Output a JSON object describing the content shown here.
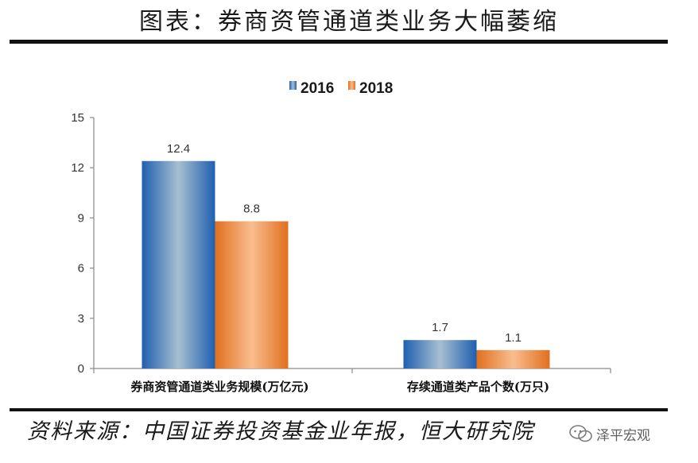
{
  "header": {
    "title": "图表：券商资管通道类业务大幅萎缩"
  },
  "footer": {
    "source": "资料来源：中国证券投资基金业年报，恒大研究院"
  },
  "watermark": {
    "text": "泽平宏观",
    "icon": "wechat-icon"
  },
  "colors": {
    "s2016_dark": "#1f5fb0",
    "s2016_light": "#9fb8cc",
    "s2018_dark": "#e0701f",
    "s2018_light": "#f7b98a",
    "axis": "#888888"
  },
  "chart_data": {
    "type": "bar",
    "categories": [
      "券商资管通道类业务规模(万亿元)",
      "存续通道类产品个数(万只)"
    ],
    "series": [
      {
        "name": "2016",
        "values": [
          12.4,
          1.7
        ]
      },
      {
        "name": "2018",
        "values": [
          8.8,
          1.1
        ]
      }
    ],
    "data_labels": [
      [
        "12.4",
        "1.7"
      ],
      [
        "8.8",
        "1.1"
      ]
    ],
    "yticks": [
      "0",
      "3",
      "6",
      "9",
      "12",
      "15"
    ],
    "ylim": [
      0,
      15
    ],
    "legend_position": "top-center",
    "grid": false
  }
}
